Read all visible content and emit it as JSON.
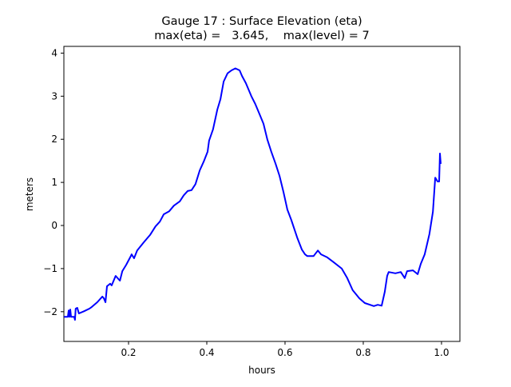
{
  "chart_data": {
    "type": "line",
    "title": "Gauge 17 : Surface Elevation (eta)",
    "subtitle": "max(eta) =   3.645,    max(level) = 7",
    "xlabel": "hours",
    "ylabel": "meters",
    "xlim": [
      0.0347,
      1.047
    ],
    "ylim": [
      -2.69,
      4.156
    ],
    "xticks": [
      0.2,
      0.4,
      0.6,
      0.8,
      1.0
    ],
    "xtick_labels": [
      "0.2",
      "0.4",
      "0.6",
      "0.8",
      "1.0"
    ],
    "yticks": [
      -2,
      -1,
      0,
      1,
      2,
      3,
      4
    ],
    "ytick_labels": [
      "−2",
      "−1",
      "0",
      "1",
      "2",
      "3",
      "4"
    ],
    "grid": false,
    "series": [
      {
        "name": "eta",
        "color": "#0000ff",
        "x": [
          0.035,
          0.045,
          0.047,
          0.049,
          0.051,
          0.053,
          0.061,
          0.063,
          0.065,
          0.069,
          0.073,
          0.086,
          0.1,
          0.106,
          0.12,
          0.133,
          0.137,
          0.141,
          0.145,
          0.153,
          0.157,
          0.167,
          0.178,
          0.184,
          0.194,
          0.204,
          0.208,
          0.214,
          0.222,
          0.239,
          0.255,
          0.269,
          0.28,
          0.29,
          0.304,
          0.316,
          0.331,
          0.341,
          0.351,
          0.361,
          0.371,
          0.382,
          0.392,
          0.402,
          0.406,
          0.416,
          0.427,
          0.435,
          0.443,
          0.453,
          0.463,
          0.473,
          0.484,
          0.49,
          0.5,
          0.514,
          0.524,
          0.535,
          0.545,
          0.555,
          0.565,
          0.576,
          0.586,
          0.596,
          0.606,
          0.616,
          0.631,
          0.643,
          0.651,
          0.657,
          0.673,
          0.684,
          0.692,
          0.708,
          0.724,
          0.745,
          0.759,
          0.773,
          0.79,
          0.804,
          0.827,
          0.837,
          0.847,
          0.855,
          0.861,
          0.865,
          0.882,
          0.896,
          0.906,
          0.912,
          0.927,
          0.939,
          0.947,
          0.957,
          0.969,
          0.978,
          0.984,
          0.99,
          0.994,
          0.996,
          0.998
        ],
        "y": [
          -2.12,
          -2.12,
          -1.97,
          -2.12,
          -1.95,
          -2.12,
          -2.12,
          -2.19,
          -1.93,
          -1.91,
          -2.04,
          -1.99,
          -1.93,
          -1.89,
          -1.78,
          -1.65,
          -1.69,
          -1.78,
          -1.41,
          -1.35,
          -1.39,
          -1.17,
          -1.28,
          -1.06,
          -0.91,
          -0.74,
          -0.67,
          -0.76,
          -0.58,
          -0.39,
          -0.22,
          -0.02,
          0.09,
          0.26,
          0.33,
          0.46,
          0.56,
          0.7,
          0.8,
          0.82,
          0.96,
          1.28,
          1.48,
          1.71,
          1.97,
          2.23,
          2.69,
          2.93,
          3.34,
          3.53,
          3.6,
          3.645,
          3.6,
          3.47,
          3.3,
          3.0,
          2.82,
          2.58,
          2.36,
          1.99,
          1.71,
          1.43,
          1.15,
          0.78,
          0.37,
          0.13,
          -0.28,
          -0.56,
          -0.67,
          -0.71,
          -0.71,
          -0.58,
          -0.67,
          -0.74,
          -0.85,
          -1.0,
          -1.22,
          -1.5,
          -1.69,
          -1.8,
          -1.87,
          -1.84,
          -1.86,
          -1.54,
          -1.17,
          -1.08,
          -1.11,
          -1.08,
          -1.22,
          -1.06,
          -1.04,
          -1.13,
          -0.89,
          -0.67,
          -0.2,
          0.32,
          1.11,
          1.02,
          1.02,
          1.67,
          1.43
        ]
      }
    ]
  }
}
